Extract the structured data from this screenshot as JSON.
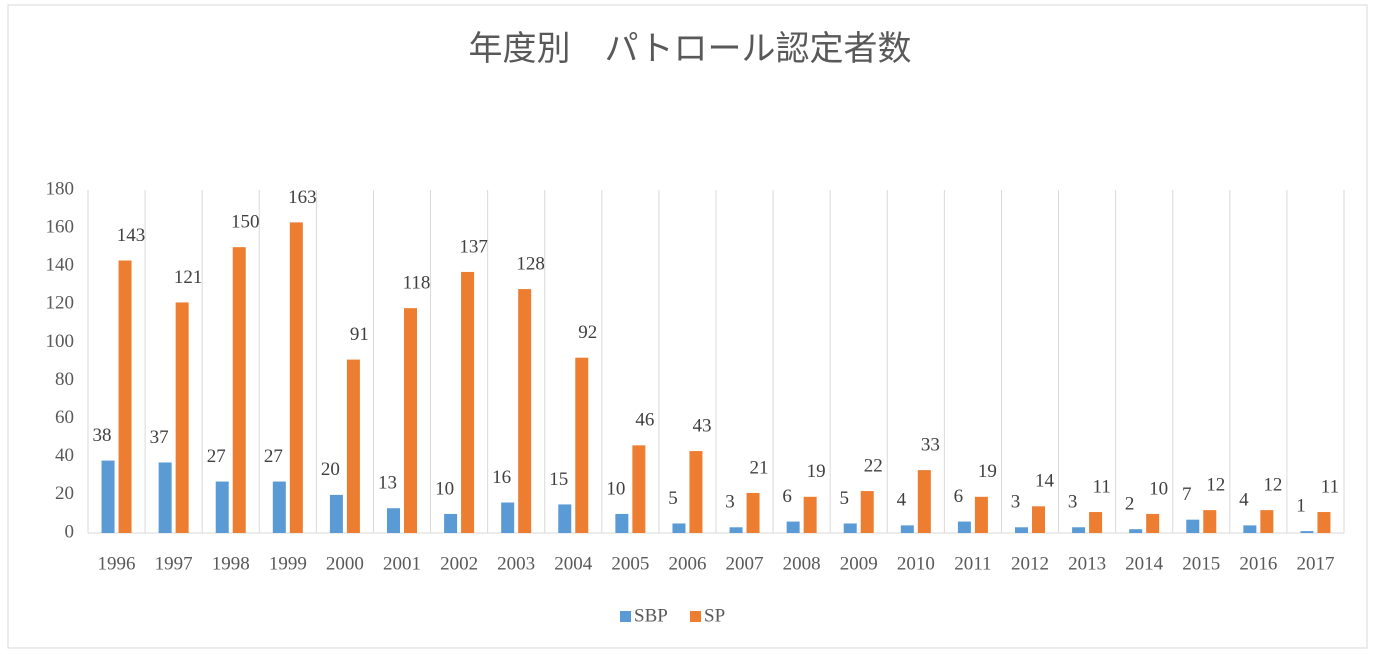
{
  "chart_data": {
    "type": "bar",
    "title": "年度別　パトロール認定者数",
    "categories": [
      "1996",
      "1997",
      "1998",
      "1999",
      "2000",
      "2001",
      "2002",
      "2003",
      "2004",
      "2005",
      "2006",
      "2007",
      "2008",
      "2009",
      "2010",
      "2011",
      "2012",
      "2013",
      "2014",
      "2015",
      "2016",
      "2017"
    ],
    "series": [
      {
        "name": "SBP",
        "color": "#5b9bd5",
        "values": [
          38,
          37,
          27,
          27,
          20,
          13,
          10,
          16,
          15,
          10,
          5,
          3,
          6,
          5,
          4,
          6,
          3,
          3,
          2,
          7,
          4,
          1
        ]
      },
      {
        "name": "SP",
        "color": "#ed7d31",
        "values": [
          143,
          121,
          150,
          163,
          91,
          118,
          137,
          128,
          92,
          46,
          43,
          21,
          19,
          22,
          33,
          19,
          14,
          11,
          10,
          12,
          12,
          11
        ]
      }
    ],
    "ylim": [
      0,
      180
    ],
    "yticks": [
      0,
      20,
      40,
      60,
      80,
      100,
      120,
      140,
      160,
      180
    ],
    "grid": "x",
    "legend": "bottom"
  }
}
